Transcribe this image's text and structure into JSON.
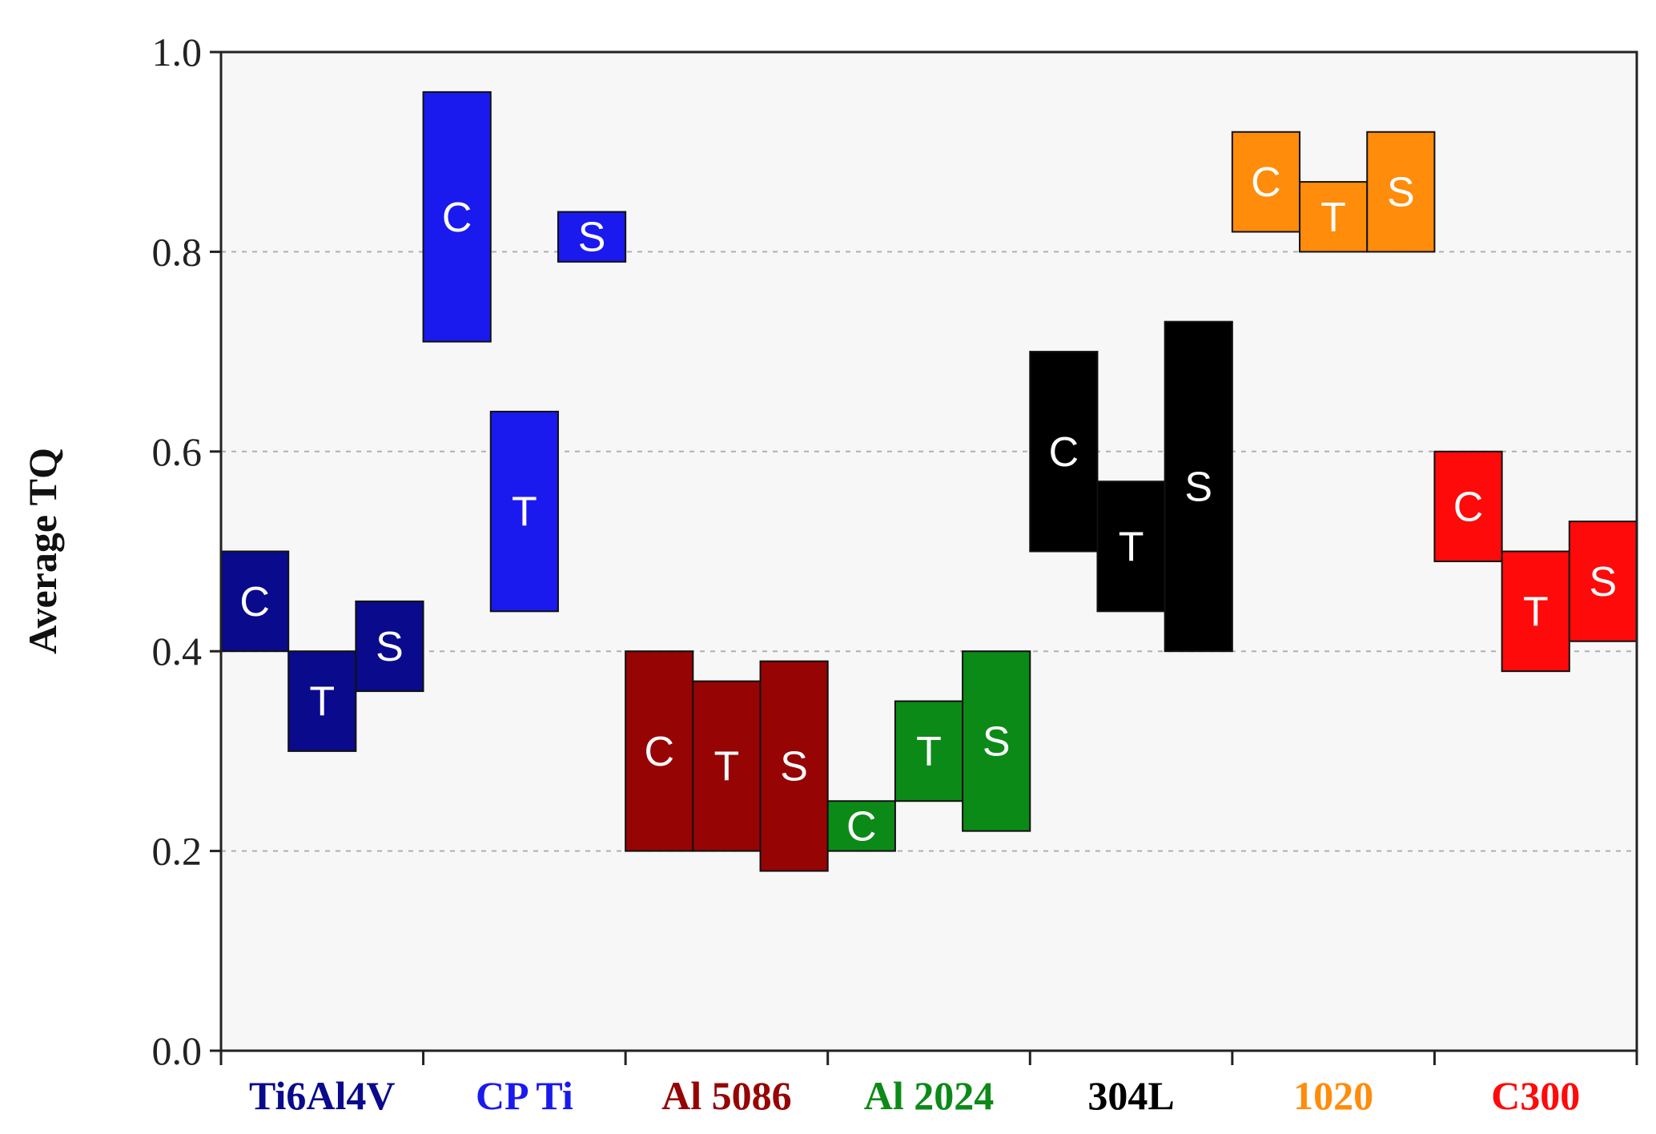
{
  "chart_data": {
    "type": "bar",
    "bar_style": "floating-range",
    "ylabel": "Average TQ",
    "xlabel": "",
    "title": "",
    "ylim": [
      0.0,
      1.0
    ],
    "yticks": [
      "0.0",
      "0.2",
      "0.4",
      "0.6",
      "0.8",
      "1.0"
    ],
    "grid": "horizontal-dotted",
    "groups": [
      {
        "name": "Ti6Al4V",
        "color": "#0a0a8c",
        "bars": [
          {
            "label": "C",
            "low": 0.4,
            "high": 0.5
          },
          {
            "label": "T",
            "low": 0.3,
            "high": 0.4
          },
          {
            "label": "S",
            "low": 0.36,
            "high": 0.45
          }
        ]
      },
      {
        "name": "CP Ti",
        "color": "#1a1aee",
        "bars": [
          {
            "label": "C",
            "low": 0.71,
            "high": 0.96
          },
          {
            "label": "T",
            "low": 0.44,
            "high": 0.64
          },
          {
            "label": "S",
            "low": 0.79,
            "high": 0.84
          }
        ]
      },
      {
        "name": "Al 5086",
        "color": "#960404",
        "bars": [
          {
            "label": "C",
            "low": 0.2,
            "high": 0.4
          },
          {
            "label": "T",
            "low": 0.2,
            "high": 0.37
          },
          {
            "label": "S",
            "low": 0.18,
            "high": 0.39
          }
        ]
      },
      {
        "name": "Al 2024",
        "color": "#0c8a18",
        "bars": [
          {
            "label": "C",
            "low": 0.2,
            "high": 0.25
          },
          {
            "label": "T",
            "low": 0.25,
            "high": 0.35
          },
          {
            "label": "S",
            "low": 0.22,
            "high": 0.4
          }
        ]
      },
      {
        "name": "304L",
        "color": "#000000",
        "bars": [
          {
            "label": "C",
            "low": 0.5,
            "high": 0.7
          },
          {
            "label": "T",
            "low": 0.44,
            "high": 0.57
          },
          {
            "label": "S",
            "low": 0.4,
            "high": 0.73
          }
        ]
      },
      {
        "name": "1020",
        "color": "#ff8c0a",
        "bars": [
          {
            "label": "C",
            "low": 0.82,
            "high": 0.92
          },
          {
            "label": "T",
            "low": 0.8,
            "high": 0.87
          },
          {
            "label": "S",
            "low": 0.8,
            "high": 0.92
          }
        ]
      },
      {
        "name": "C300",
        "color": "#ff0a0a",
        "bars": [
          {
            "label": "C",
            "low": 0.49,
            "high": 0.6
          },
          {
            "label": "T",
            "low": 0.38,
            "high": 0.5
          },
          {
            "label": "S",
            "low": 0.41,
            "high": 0.53
          }
        ]
      }
    ]
  }
}
